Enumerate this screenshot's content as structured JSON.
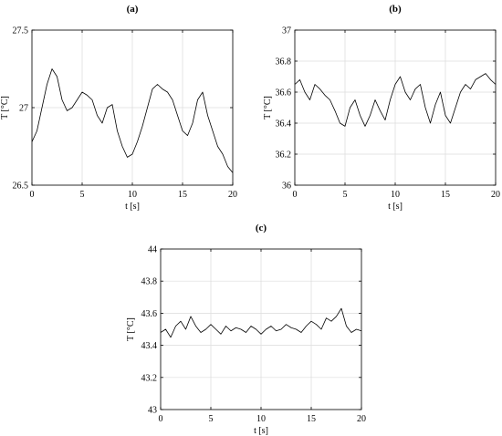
{
  "chart_data": [
    {
      "type": "line",
      "title": "(a)",
      "xlabel": "t [s]",
      "ylabel": "T [°C]",
      "xlim": [
        0,
        20
      ],
      "ylim": [
        26.5,
        27.5
      ],
      "xticks": [
        0,
        5,
        10,
        15,
        20
      ],
      "yticks": [
        26.5,
        27,
        27.5
      ],
      "grid": true,
      "series": [
        {
          "x": [
            0,
            0.5,
            1,
            1.5,
            2,
            2.5,
            3,
            3.5,
            4,
            4.5,
            5,
            5.5,
            6,
            6.5,
            7,
            7.5,
            8,
            8.5,
            9,
            9.5,
            10,
            10.5,
            11,
            11.5,
            12,
            12.5,
            13,
            13.5,
            14,
            14.5,
            15,
            15.5,
            16,
            16.5,
            17,
            17.5,
            18,
            18.5,
            19,
            19.5,
            20
          ],
          "y": [
            26.78,
            26.85,
            27.0,
            27.15,
            27.25,
            27.2,
            27.05,
            26.98,
            27.0,
            27.05,
            27.1,
            27.08,
            27.05,
            26.95,
            26.9,
            27.0,
            27.02,
            26.85,
            26.75,
            26.68,
            26.7,
            26.78,
            26.88,
            27.0,
            27.12,
            27.15,
            27.12,
            27.1,
            27.05,
            26.95,
            26.85,
            26.82,
            26.9,
            27.05,
            27.1,
            26.95,
            26.85,
            26.75,
            26.7,
            26.62,
            26.58
          ]
        }
      ]
    },
    {
      "type": "line",
      "title": "(b)",
      "xlabel": "t [s]",
      "ylabel": "T [°C]",
      "xlim": [
        0,
        20
      ],
      "ylim": [
        36,
        37
      ],
      "xticks": [
        0,
        5,
        10,
        15,
        20
      ],
      "yticks": [
        36,
        36.2,
        36.4,
        36.6,
        36.8,
        37
      ],
      "grid": true,
      "series": [
        {
          "x": [
            0,
            0.5,
            1,
            1.5,
            2,
            2.5,
            3,
            3.5,
            4,
            4.5,
            5,
            5.5,
            6,
            6.5,
            7,
            7.5,
            8,
            8.5,
            9,
            9.5,
            10,
            10.5,
            11,
            11.5,
            12,
            12.5,
            13,
            13.5,
            14,
            14.5,
            15,
            15.5,
            16,
            16.5,
            17,
            17.5,
            18,
            18.5,
            19,
            19.5,
            20
          ],
          "y": [
            36.65,
            36.68,
            36.6,
            36.55,
            36.65,
            36.62,
            36.58,
            36.55,
            36.48,
            36.4,
            36.38,
            36.5,
            36.55,
            36.45,
            36.38,
            36.45,
            36.55,
            36.48,
            36.42,
            36.55,
            36.65,
            36.7,
            36.6,
            36.55,
            36.62,
            36.65,
            36.5,
            36.4,
            36.52,
            36.6,
            36.45,
            36.4,
            36.5,
            36.6,
            36.65,
            36.62,
            36.68,
            36.7,
            36.72,
            36.68,
            36.65
          ]
        }
      ]
    },
    {
      "type": "line",
      "title": "(c)",
      "xlabel": "t [s]",
      "ylabel": "T [°C]",
      "xlim": [
        0,
        20
      ],
      "ylim": [
        43,
        44
      ],
      "xticks": [
        0,
        5,
        10,
        15,
        20
      ],
      "yticks": [
        43,
        43.2,
        43.4,
        43.6,
        43.8,
        44
      ],
      "grid": true,
      "series": [
        {
          "x": [
            0,
            0.5,
            1,
            1.5,
            2,
            2.5,
            3,
            3.5,
            4,
            4.5,
            5,
            5.5,
            6,
            6.5,
            7,
            7.5,
            8,
            8.5,
            9,
            9.5,
            10,
            10.5,
            11,
            11.5,
            12,
            12.5,
            13,
            13.5,
            14,
            14.5,
            15,
            15.5,
            16,
            16.5,
            17,
            17.5,
            18,
            18.5,
            19,
            19.5,
            20
          ],
          "y": [
            43.48,
            43.5,
            43.45,
            43.52,
            43.55,
            43.5,
            43.58,
            43.52,
            43.48,
            43.5,
            43.53,
            43.5,
            43.47,
            43.52,
            43.49,
            43.51,
            43.5,
            43.48,
            43.52,
            43.5,
            43.47,
            43.5,
            43.52,
            43.49,
            43.5,
            43.53,
            43.51,
            43.5,
            43.48,
            43.52,
            43.55,
            43.53,
            43.5,
            43.57,
            43.55,
            43.58,
            43.63,
            43.52,
            43.48,
            43.5,
            43.49
          ]
        }
      ]
    }
  ]
}
